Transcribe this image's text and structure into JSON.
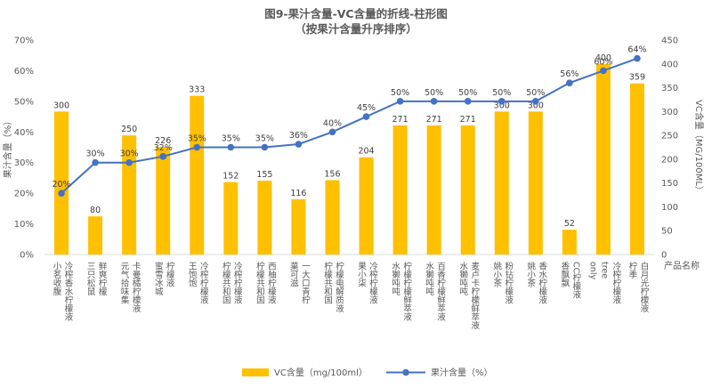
{
  "chart_data": {
    "type": "bar+line",
    "title": "图9-果汁含量-VC含量的折线-柱形图",
    "subtitle": "（按果汁含量升序排序）",
    "xlabel": "产品名称",
    "ylabel_left": "果汁含量（%）",
    "ylabel_right": "VC含量（MG/100ML）",
    "ylim_left": [
      0,
      70
    ],
    "ylim_right": [
      0,
      450
    ],
    "yticks_left": [
      "0%",
      "10%",
      "20%",
      "30%",
      "40%",
      "50%",
      "60%",
      "70%"
    ],
    "yticks_right": [
      "0",
      "50",
      "100",
      "150",
      "200",
      "250",
      "300",
      "350",
      "400",
      "450"
    ],
    "categories": [
      "小茗收腹 冷榨香水柠檬液",
      "三只松鼠 鲜爽柠檬",
      "元气拾味集 卡曼橘柠檬液",
      "蜜雪冰城 柠檬液",
      "王饱饱 冷榨柠檬液",
      "柠檬共和国 冷榨柠檬液",
      "柠檬共和国 西柚柠檬液",
      "菓可滋 一大口青柠",
      "柠檬共和国 柠檬电解质液",
      "果小柒 冷榨柠檬液",
      "水獭吨吨 柠檬柠檬鲜萃液",
      "水獭吨吨 百香柠檬鲜萃液",
      "水獭吨吨 麦卢卡柠檬鲜萃液",
      "姚小茶 粉钻柠檬液",
      "姚小茶 香水柠檬液",
      "香飘飘 CC柠檬液",
      "only tree 冷榨柠檬液",
      "柠季 白月光柠檬液"
    ],
    "series": [
      {
        "name": "VC含量（mg/100ml）",
        "type": "bar",
        "axis": "right",
        "color": "#FFC000",
        "values": [
          300,
          80,
          250,
          226,
          333,
          152,
          155,
          116,
          156,
          204,
          271,
          271,
          271,
          300,
          300,
          52,
          400,
          359
        ],
        "labels": [
          "300",
          "80",
          "250",
          "226",
          "333",
          "152",
          "155",
          "116",
          "156",
          "204",
          "271",
          "271",
          "271",
          "300",
          "300",
          "52",
          "400",
          "359"
        ]
      },
      {
        "name": "果汁含量（%）",
        "type": "line",
        "axis": "left",
        "color": "#4472C4",
        "values": [
          20,
          30,
          30,
          32,
          35,
          35,
          35,
          36,
          40,
          45,
          50,
          50,
          50,
          50,
          50,
          56,
          60,
          64
        ],
        "labels": [
          "20%",
          "30%",
          "30%",
          "32%",
          "35%",
          "35%",
          "35%",
          "36%",
          "40%",
          "45%",
          "50%",
          "50%",
          "50%",
          "50%",
          "50%",
          "56%",
          "60%",
          "64%"
        ]
      }
    ],
    "grid": false,
    "legend_position": "bottom"
  }
}
